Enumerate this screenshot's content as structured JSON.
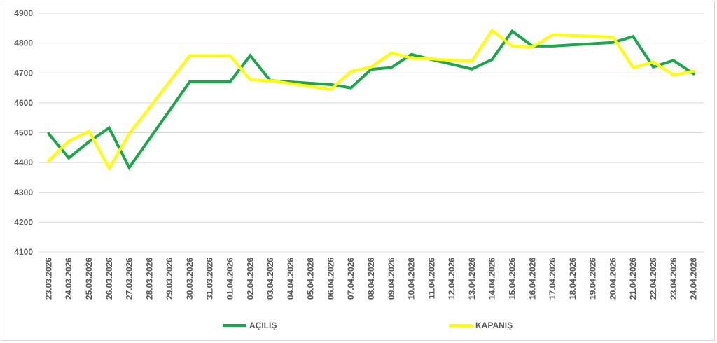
{
  "chart_data": {
    "type": "line",
    "title": "",
    "xlabel": "",
    "ylabel": "",
    "ylim": [
      4100,
      4900
    ],
    "yticks": [
      4100,
      4200,
      4300,
      4400,
      4500,
      4600,
      4700,
      4800,
      4900
    ],
    "grid": "horizontal",
    "legend_position": "bottom",
    "x": [
      "23.03.2026",
      "24.03.2026",
      "25.03.2026",
      "26.03.2026",
      "27.03.2026",
      "28.03.2026",
      "29.03.2026",
      "30.03.2026",
      "31.03.2026",
      "01.04.2026",
      "02.04.2026",
      "03.04.2026",
      "04.04.2026",
      "05.04.2026",
      "06.04.2026",
      "07.04.2026",
      "08.04.2026",
      "09.04.2026",
      "10.04.2026",
      "11.04.2026",
      "12.04.2026",
      "13.04.2026",
      "14.04.2026",
      "15.04.2026",
      "16.04.2026",
      "17.04.2026",
      "18.04.2026",
      "19.04.2026",
      "20.04.2026",
      "21.04.2026",
      "22.04.2026",
      "23.04.2026",
      "24.04.2026"
    ],
    "series": [
      {
        "name": "AÇILIŞ",
        "color": "#1aa64a",
        "values": [
          4497,
          4415,
          4470,
          4516,
          4383,
          null,
          null,
          4670,
          4670,
          4670,
          4758,
          4674,
          null,
          null,
          4661,
          4650,
          4712,
          4718,
          4762,
          4745,
          4729,
          4713,
          4745,
          4840,
          4790,
          4790,
          null,
          null,
          4802,
          4822,
          4720,
          4742,
          4697
        ]
      },
      {
        "name": "KAPANIŞ",
        "color": "#ffff00",
        "values": [
          4406,
          4472,
          4505,
          4381,
          4497,
          null,
          null,
          4758,
          4758,
          4758,
          4677,
          4674,
          null,
          null,
          4645,
          4705,
          4720,
          4767,
          4750,
          4747,
          4742,
          4740,
          4842,
          4790,
          4787,
          4828,
          null,
          null,
          4820,
          4718,
          4737,
          4693,
          4706
        ]
      }
    ]
  }
}
